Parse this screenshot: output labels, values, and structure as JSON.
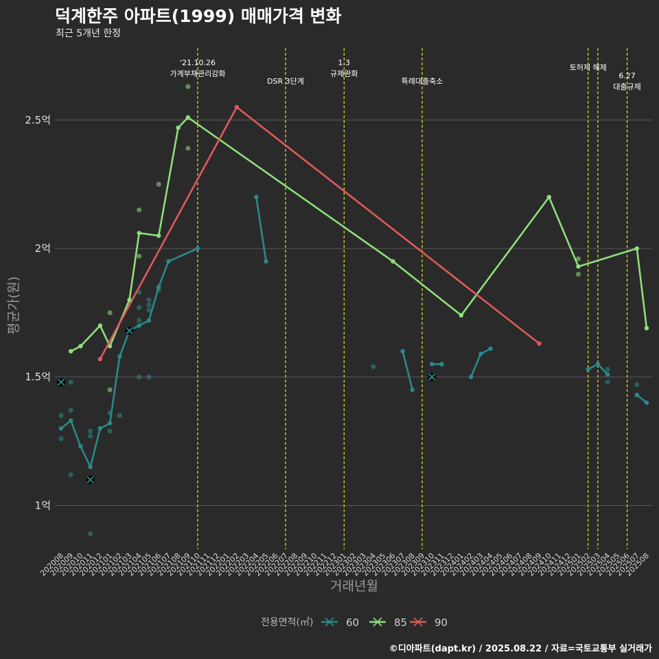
{
  "title": "덕계한주 아파트(1999) 매매가격 변화",
  "subtitle": "최근 5개년 한정",
  "source": "©디아파트(dapt.kr) / 2025.08.22 / 자료=국토교통부 실거래가",
  "chart_data": {
    "type": "line",
    "xlabel": "거래년월",
    "ylabel": "평균가(원)",
    "ylim": [
      0.83,
      2.78
    ],
    "yticks": [
      {
        "v": 1.0,
        "label": "1억"
      },
      {
        "v": 1.5,
        "label": "1.5억"
      },
      {
        "v": 2.0,
        "label": "2억"
      },
      {
        "v": 2.5,
        "label": "2.5억"
      }
    ],
    "categories": [
      "202008",
      "202009",
      "202010",
      "202011",
      "202012",
      "202101",
      "202102",
      "202103",
      "202104",
      "202105",
      "202106",
      "202107",
      "202108",
      "202109",
      "202110",
      "202111",
      "202112",
      "202201",
      "202202",
      "202203",
      "202204",
      "202205",
      "202206",
      "202207",
      "202208",
      "202209",
      "202210",
      "202211",
      "202212",
      "202301",
      "202302",
      "202303",
      "202304",
      "202305",
      "202306",
      "202307",
      "202308",
      "202309",
      "202310",
      "202311",
      "202312",
      "202401",
      "202402",
      "202403",
      "202404",
      "202405",
      "202406",
      "202407",
      "202408",
      "202409",
      "202410",
      "202411",
      "202412",
      "202501",
      "202502",
      "202503",
      "202504",
      "202505",
      "202506",
      "202507",
      "202508"
    ],
    "legend": {
      "title": "전용면적(㎡)",
      "position": "bottom"
    },
    "series": [
      {
        "name": "60",
        "color": "#2a8a8a",
        "segments": [
          [
            [
              "202008",
              1.3
            ],
            [
              "202009",
              1.33
            ],
            [
              "202010",
              1.23
            ],
            [
              "202011",
              1.15
            ],
            [
              "202012",
              1.3
            ],
            [
              "202101",
              1.32
            ],
            [
              "202102",
              1.58
            ],
            [
              "202103",
              1.68
            ],
            [
              "202104",
              1.7
            ],
            [
              "202105",
              1.72
            ],
            [
              "202106",
              1.85
            ],
            [
              "202107",
              1.95
            ],
            [
              "202110",
              2.0
            ]
          ],
          [
            [
              "202204",
              2.2
            ],
            [
              "202205",
              1.95
            ]
          ],
          [
            [
              "202307",
              1.6
            ],
            [
              "202308",
              1.45
            ]
          ],
          [
            [
              "202310",
              1.55
            ],
            [
              "202311",
              1.55
            ]
          ],
          [
            [
              "202402",
              1.5
            ],
            [
              "202403",
              1.59
            ],
            [
              "202404",
              1.61
            ]
          ],
          [
            [
              "202502",
              1.53
            ],
            [
              "202503",
              1.55
            ],
            [
              "202504",
              1.51
            ]
          ],
          [
            [
              "202507",
              1.43
            ],
            [
              "202508",
              1.4
            ]
          ]
        ],
        "points": [
          [
            "202008",
            1.35
          ],
          [
            "202008",
            1.26
          ],
          [
            "202009",
            1.37
          ],
          [
            "202009",
            1.12
          ],
          [
            "202009",
            1.48
          ],
          [
            "202011",
            1.29
          ],
          [
            "202011",
            1.27
          ],
          [
            "202011",
            0.89
          ],
          [
            "202101",
            1.36
          ],
          [
            "202101",
            1.29
          ],
          [
            "202102",
            1.35
          ],
          [
            "202104",
            1.83
          ],
          [
            "202104",
            1.77
          ],
          [
            "202104",
            1.72
          ],
          [
            "202104",
            1.5
          ],
          [
            "202105",
            1.8
          ],
          [
            "202105",
            1.78
          ],
          [
            "202105",
            1.76
          ],
          [
            "202105",
            1.5
          ],
          [
            "202106",
            1.84
          ],
          [
            "202304",
            1.54
          ],
          [
            "202504",
            1.53
          ],
          [
            "202504",
            1.48
          ],
          [
            "202507",
            1.47
          ]
        ],
        "crosses": [
          [
            "202008",
            1.48
          ],
          [
            "202011",
            1.1
          ],
          [
            "202103",
            1.68
          ],
          [
            "202310",
            1.5
          ]
        ]
      },
      {
        "name": "85",
        "color": "#8ee07a",
        "segments": [
          [
            [
              "202009",
              1.6
            ],
            [
              "202010",
              1.62
            ],
            [
              "202012",
              1.7
            ],
            [
              "202101",
              1.62
            ],
            [
              "202103",
              1.8
            ],
            [
              "202104",
              2.06
            ],
            [
              "202106",
              2.05
            ],
            [
              "202108",
              2.47
            ],
            [
              "202109",
              2.51
            ],
            [
              "202306",
              1.95
            ],
            [
              "202401",
              1.74
            ],
            [
              "202410",
              2.2
            ],
            [
              "202501",
              1.93
            ],
            [
              "202507",
              2.0
            ],
            [
              "202508",
              1.69
            ]
          ]
        ],
        "points": [
          [
            "202101",
            1.75
          ],
          [
            "202101",
            1.45
          ],
          [
            "202104",
            2.15
          ],
          [
            "202104",
            1.97
          ],
          [
            "202106",
            2.25
          ],
          [
            "202109",
            2.63
          ],
          [
            "202109",
            2.39
          ],
          [
            "202501",
            1.96
          ],
          [
            "202501",
            1.9
          ]
        ],
        "crosses": []
      },
      {
        "name": "90",
        "color": "#e05a5a",
        "segments": [
          [
            [
              "202012",
              1.57
            ],
            [
              "202202",
              2.55
            ],
            [
              "202409",
              1.63
            ]
          ]
        ],
        "points": [],
        "crosses": []
      }
    ],
    "events": [
      {
        "month": "202110",
        "label": "'21.10.26\n가계부채관리강화",
        "row": 0
      },
      {
        "month": "202207",
        "label": "DSR 3단계",
        "row": 1
      },
      {
        "month": "202301",
        "label": "1.3\n규제완화",
        "row": 0
      },
      {
        "month": "202309",
        "label": "특례대출축소",
        "row": 1
      },
      {
        "month": "202502",
        "label": "토허제 해제",
        "row": 0
      },
      {
        "month": "202503",
        "label": "",
        "row": 0
      },
      {
        "month": "202506",
        "label": "6.27\n대출규제",
        "row": 2
      }
    ]
  }
}
